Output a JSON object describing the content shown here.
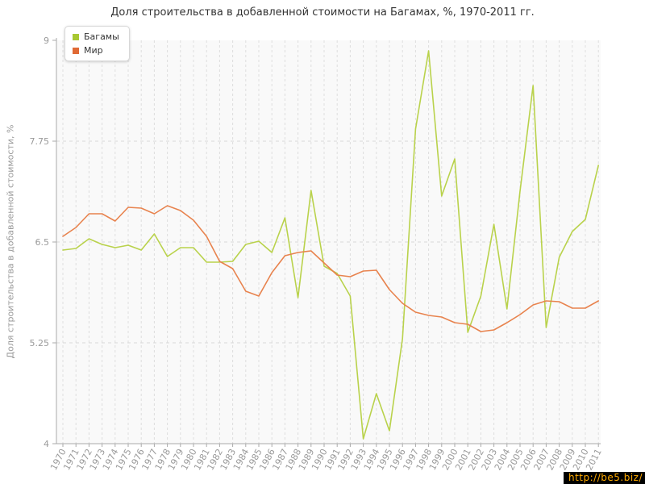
{
  "title": "Доля строительства в добавленной стоимости на Багамах, %, 1970-2011 гг.",
  "watermark": "http://be5.biz/",
  "legend": {
    "items": [
      {
        "label": "Багамы",
        "color": "#a8c832"
      },
      {
        "label": "Мир",
        "color": "#e06a35"
      }
    ]
  },
  "chart_data": {
    "type": "line",
    "title": "Доля строительства в добавленной стоимости на Багамах, %, 1970-2011 гг.",
    "xlabel": "",
    "ylabel": "Доля строительства в добавленной стоимости, %",
    "ylim": [
      4,
      9
    ],
    "y_ticks": [
      4,
      5.25,
      6.5,
      7.75,
      9
    ],
    "grid": "dashed",
    "legend_position": "top-left",
    "x": [
      1970,
      1971,
      1972,
      1973,
      1974,
      1975,
      1976,
      1977,
      1978,
      1979,
      1980,
      1981,
      1982,
      1983,
      1984,
      1985,
      1986,
      1987,
      1988,
      1989,
      1990,
      1991,
      1992,
      1993,
      1994,
      1995,
      1996,
      1997,
      1998,
      1999,
      2000,
      2001,
      2002,
      2003,
      2004,
      2005,
      2006,
      2007,
      2008,
      2009,
      2010,
      2011
    ],
    "series": [
      {
        "name": "Багамы",
        "color": "#b9d24b",
        "values": [
          6.4,
          6.42,
          6.54,
          6.47,
          6.43,
          6.46,
          6.4,
          6.6,
          6.32,
          6.43,
          6.43,
          6.25,
          6.25,
          6.26,
          6.47,
          6.51,
          6.37,
          6.8,
          5.81,
          7.14,
          6.2,
          6.11,
          5.83,
          4.06,
          4.62,
          4.16,
          5.3,
          7.9,
          8.87,
          7.07,
          7.53,
          5.38,
          5.83,
          6.72,
          5.67,
          7.13,
          8.44,
          5.44,
          6.31,
          6.63,
          6.78,
          7.45
        ]
      },
      {
        "name": "Мир",
        "color": "#e8834e",
        "values": [
          6.57,
          6.68,
          6.85,
          6.85,
          6.76,
          6.93,
          6.92,
          6.85,
          6.95,
          6.89,
          6.77,
          6.57,
          6.26,
          6.17,
          5.89,
          5.83,
          6.12,
          6.33,
          6.37,
          6.39,
          6.24,
          6.09,
          6.07,
          6.14,
          6.15,
          5.91,
          5.74,
          5.63,
          5.59,
          5.57,
          5.5,
          5.48,
          5.39,
          5.41,
          5.5,
          5.6,
          5.72,
          5.77,
          5.76,
          5.68,
          5.68,
          5.77
        ]
      }
    ]
  }
}
